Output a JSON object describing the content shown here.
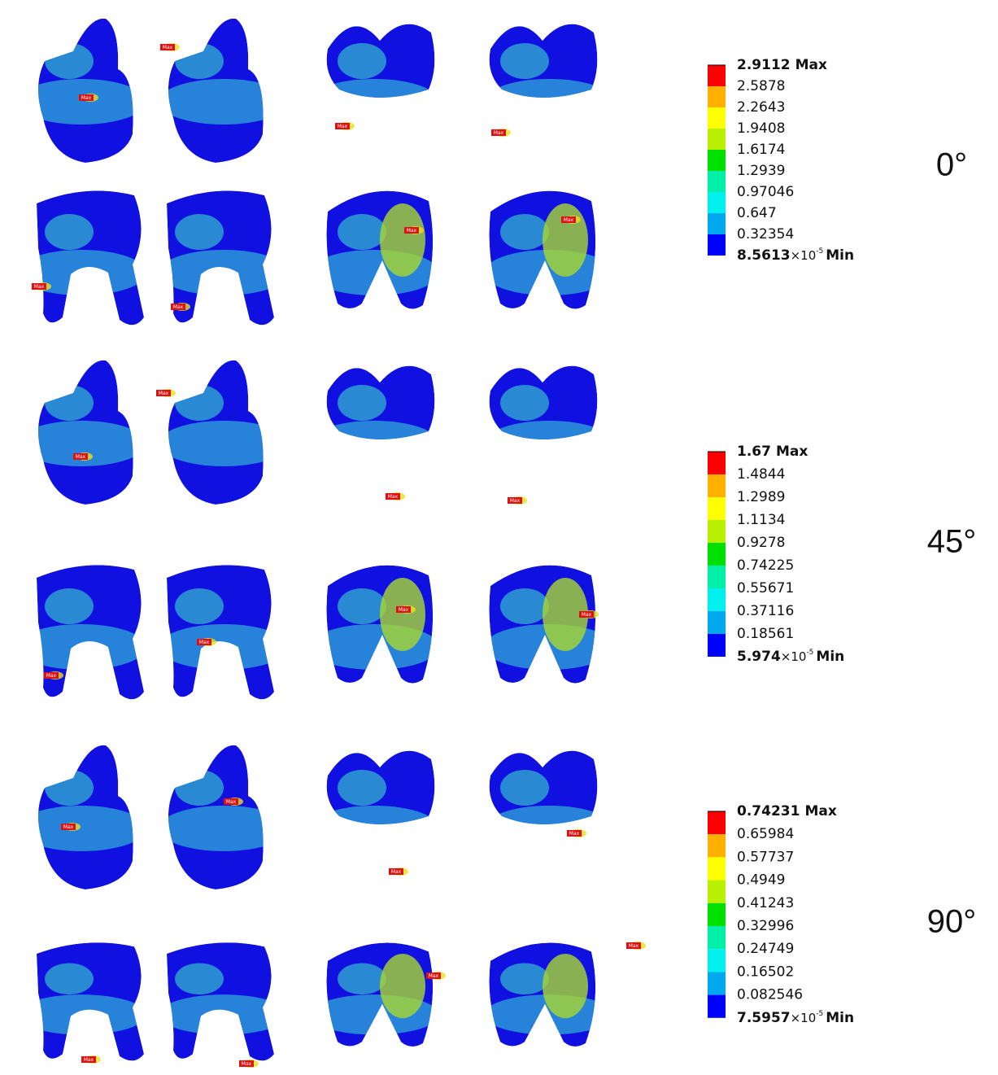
{
  "panels": [
    {
      "angle": "0°",
      "max": "2.9112",
      "levels": [
        "2.5878",
        "2.2643",
        "1.9408",
        "1.6174",
        "1.2939",
        "0.97046",
        "0.647",
        "0.32354"
      ],
      "min": "8.5613",
      "min_exp": "-5"
    },
    {
      "angle": "45°",
      "max": "1.67",
      "levels": [
        "1.4844",
        "1.2989",
        "1.1134",
        "0.9278",
        "0.74225",
        "0.55671",
        "0.37116",
        "0.18561"
      ],
      "min": "5.974",
      "min_exp": "-5"
    },
    {
      "angle": "90°",
      "max": "0.74231",
      "levels": [
        "0.65984",
        "0.57737",
        "0.4949",
        "0.41243",
        "0.32996",
        "0.24749",
        "0.16502",
        "0.082546"
      ],
      "min": "7.5957",
      "min_exp": "-5"
    }
  ],
  "max_word": "Max",
  "min_word": "Min",
  "times_ten": "×10",
  "marker_label": "Max",
  "band_colors": [
    "#ff0000",
    "#ffb000",
    "#ffff00",
    "#b8f000",
    "#00e000",
    "#00f0a8",
    "#00f0f0",
    "#00a8f0",
    "#0000ff"
  ]
}
